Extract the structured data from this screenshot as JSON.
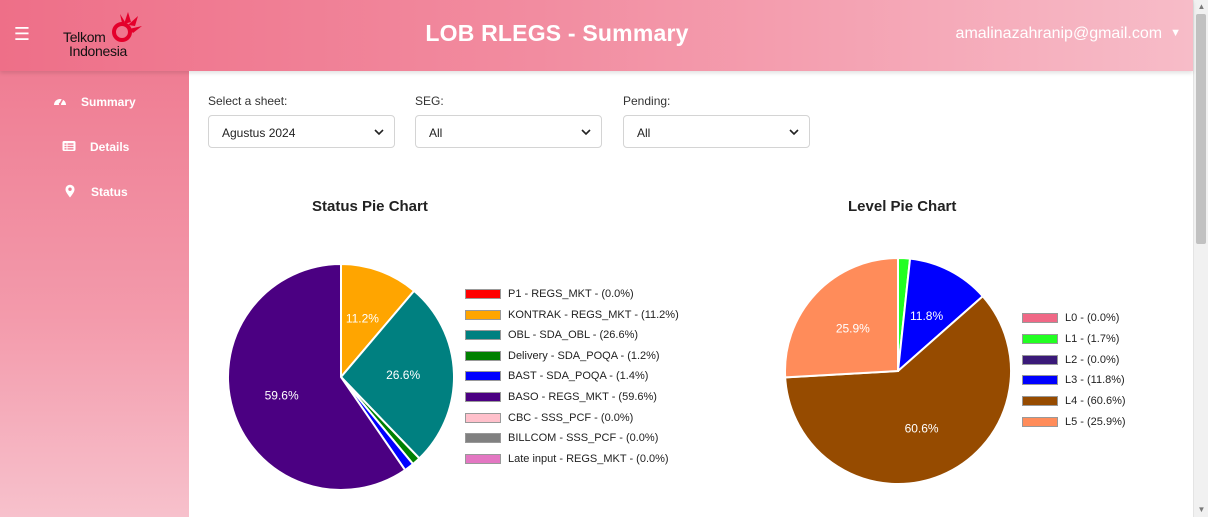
{
  "header": {
    "title": "LOB RLEGS - Summary",
    "logo_line1": "Telkom",
    "logo_line2": "Indonesia",
    "user_email": "amalinazahranip@gmail.com",
    "menu_icon": "hamburger-icon",
    "dropdown_icon": "caret-down-icon"
  },
  "sidebar": {
    "items": [
      {
        "label": "Summary",
        "icon": "dashboard-gauge-icon"
      },
      {
        "label": "Details",
        "icon": "list-card-icon"
      },
      {
        "label": "Status",
        "icon": "map-pin-icon"
      }
    ]
  },
  "filters": [
    {
      "label": "Select a sheet:",
      "value": "Agustus 2024"
    },
    {
      "label": "SEG:",
      "value": "All"
    },
    {
      "label": "Pending:",
      "value": "All"
    }
  ],
  "colors": {
    "header_start": "#ee6f88",
    "header_end": "#f7bcc8",
    "sidebar": "#ef7d93"
  },
  "chart_data": [
    {
      "type": "pie",
      "title": "Status Pie Chart",
      "legend_placement": "right",
      "slices": [
        {
          "label": "P1 -  REGS_MKT - (0.0%)",
          "value": 0.0,
          "color": "#ff0000",
          "pct_label": ""
        },
        {
          "label": "KONTRAK -  REGS_MKT - (11.2%)",
          "value": 11.2,
          "color": "#ffa500",
          "pct_label": "11.2%"
        },
        {
          "label": "OBL -  SDA_OBL - (26.6%)",
          "value": 26.6,
          "color": "#008080",
          "pct_label": "26.6%"
        },
        {
          "label": "Delivery -  SDA_POQA - (1.2%)",
          "value": 1.2,
          "color": "#008000",
          "pct_label": ""
        },
        {
          "label": "BAST -  SDA_POQA - (1.4%)",
          "value": 1.4,
          "color": "#0000ff",
          "pct_label": ""
        },
        {
          "label": "BASO -  REGS_MKT - (59.6%)",
          "value": 59.6,
          "color": "#4b0082",
          "pct_label": "59.6%"
        },
        {
          "label": "CBC -  SSS_PCF - (0.0%)",
          "value": 0.0,
          "color": "#ffc0cb",
          "pct_label": ""
        },
        {
          "label": "BILLCOM -  SSS_PCF - (0.0%)",
          "value": 0.0,
          "color": "#808080",
          "pct_label": ""
        },
        {
          "label": "Late input -  REGS_MKT - (0.0%)",
          "value": 0.0,
          "color": "#e377c2",
          "pct_label": ""
        }
      ]
    },
    {
      "type": "pie",
      "title": "Level Pie Chart",
      "legend_placement": "right",
      "slices": [
        {
          "label": "L0 - (0.0%)",
          "value": 0.0,
          "color": "#f06886",
          "pct_label": ""
        },
        {
          "label": "L1 - (1.7%)",
          "value": 1.7,
          "color": "#22ff22",
          "pct_label": ""
        },
        {
          "label": "L2 - (0.0%)",
          "value": 0.0,
          "color": "#3a1a78",
          "pct_label": ""
        },
        {
          "label": "L3 - (11.8%)",
          "value": 11.8,
          "color": "#0000ff",
          "pct_label": "11.8%"
        },
        {
          "label": "L4 - (60.6%)",
          "value": 60.6,
          "color": "#964b00",
          "pct_label": "60.6%"
        },
        {
          "label": "L5 - (25.9%)",
          "value": 25.9,
          "color": "#ff8c5a",
          "pct_label": "25.9%"
        }
      ]
    }
  ]
}
